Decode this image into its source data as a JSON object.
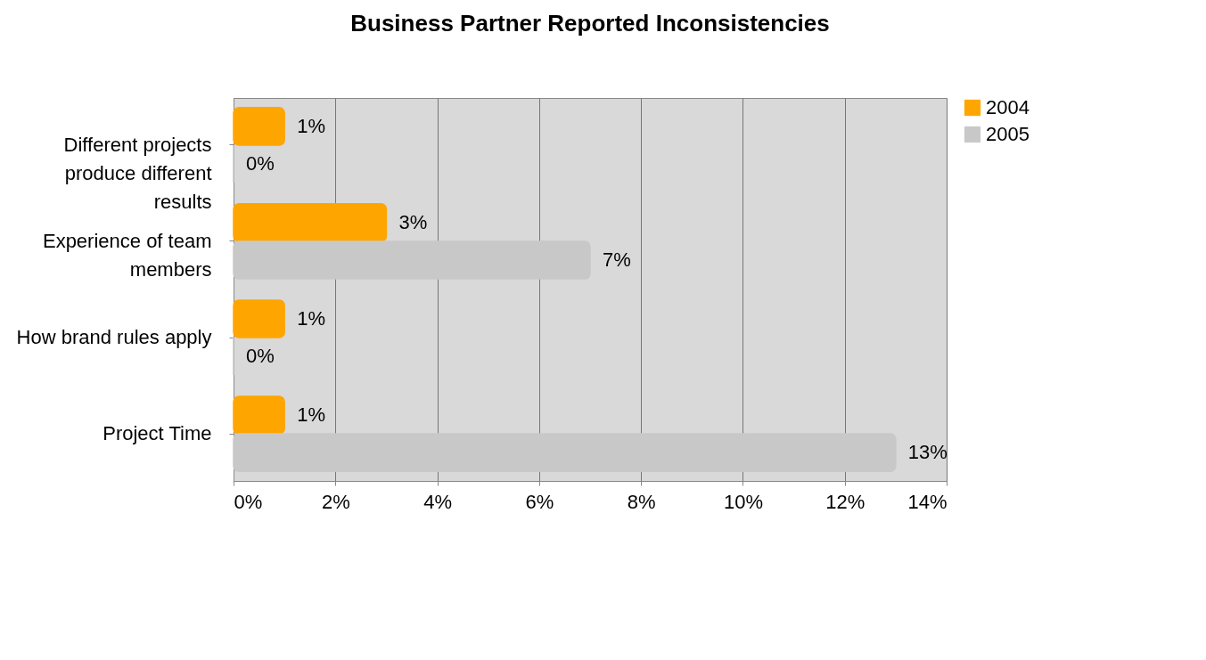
{
  "chart_data": {
    "type": "bar",
    "orientation": "horizontal",
    "title": "Business Partner Reported Inconsistencies",
    "categories": [
      "Different projects produce different results",
      "Experience of team members",
      "How brand rules apply",
      "Project Time"
    ],
    "series": [
      {
        "name": "2004",
        "color": "#ffa500",
        "values": [
          1,
          3,
          1,
          1
        ],
        "value_labels": [
          "1%",
          "3%",
          "1%",
          "1%"
        ]
      },
      {
        "name": "2005",
        "color": "#c8c8c8",
        "values": [
          0,
          7,
          0,
          13
        ],
        "value_labels": [
          "0%",
          "7%",
          "0%",
          "13%"
        ]
      }
    ],
    "xlim": [
      0,
      14
    ],
    "xticks": [
      {
        "value": 0,
        "label": "0%"
      },
      {
        "value": 2,
        "label": "2%"
      },
      {
        "value": 4,
        "label": "4%"
      },
      {
        "value": 6,
        "label": "6%"
      },
      {
        "value": 8,
        "label": "8%"
      },
      {
        "value": 10,
        "label": "10%"
      },
      {
        "value": 12,
        "label": "12%"
      },
      {
        "value": 14,
        "label": "14%"
      }
    ],
    "grid": "x",
    "legend": "right"
  }
}
